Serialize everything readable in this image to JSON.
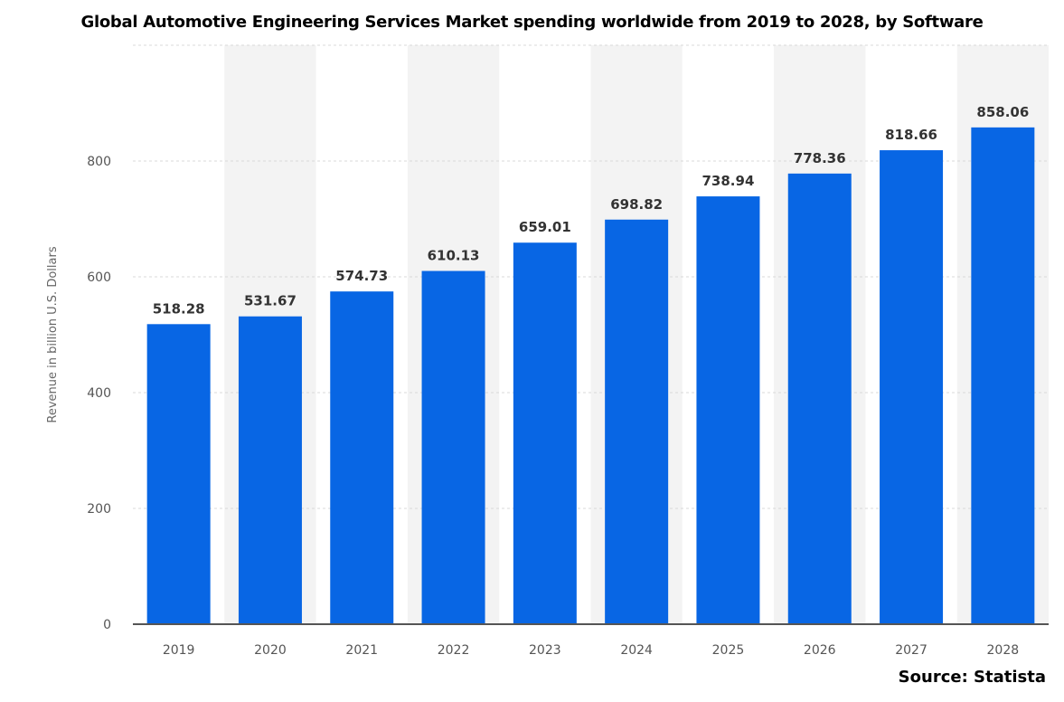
{
  "title": "Global Automotive Engineering Services Market spending worldwide from 2019 to 2028, by Software",
  "source": "Source: Statista",
  "colors": {
    "bar": "#0866e4",
    "band": "#f3f3f3",
    "grid": "#d8d8d8",
    "axis": "#555555"
  },
  "chart_data": {
    "type": "bar",
    "title": "Global Automotive Engineering Services Market spending worldwide from 2019 to 2028, by Software",
    "xlabel": "",
    "ylabel": "Revenue in billion U.S. Dollars",
    "categories": [
      "2019",
      "2020",
      "2021",
      "2022",
      "2023",
      "2024",
      "2025",
      "2026",
      "2027",
      "2028"
    ],
    "values": [
      518.28,
      531.67,
      574.73,
      610.13,
      659.01,
      698.82,
      738.94,
      778.36,
      818.66,
      858.06
    ],
    "value_labels": [
      "518.28",
      "531.67",
      "574.73",
      "610.13",
      "659.01",
      "698.82",
      "738.94",
      "778.36",
      "818.66",
      "858.06"
    ],
    "ylim": [
      0,
      1000
    ],
    "yticks": [
      0,
      200,
      400,
      600,
      800
    ],
    "grid": true,
    "legend": "none"
  }
}
